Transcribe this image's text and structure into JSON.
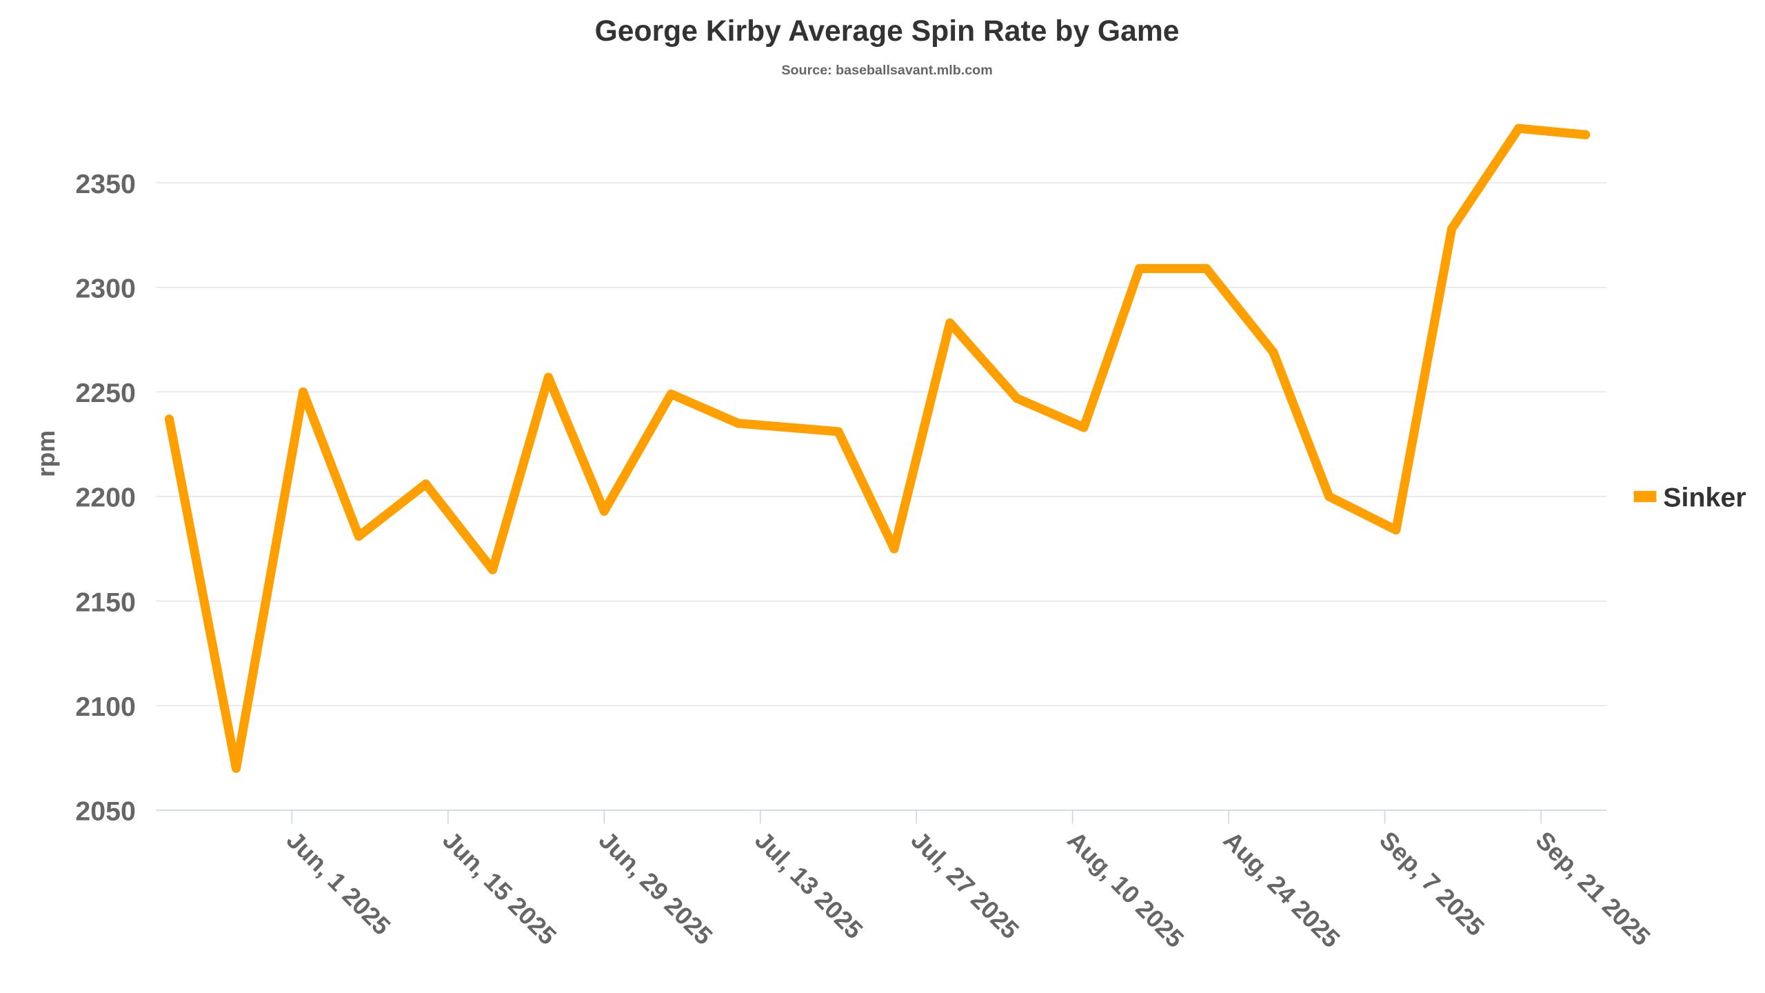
{
  "chart_data": {
    "type": "line",
    "title": "George Kirby Average Spin Rate by Game",
    "subtitle": "Source: baseballsavant.mlb.com",
    "xlabel": "",
    "ylabel": "rpm",
    "ylim": [
      2050,
      2390
    ],
    "yticks": [
      2050,
      2100,
      2150,
      2200,
      2250,
      2300,
      2350
    ],
    "xticks": [
      {
        "label": "Jun, 1 2025",
        "date": "2025-06-01"
      },
      {
        "label": "Jun, 15 2025",
        "date": "2025-06-15"
      },
      {
        "label": "Jun, 29 2025",
        "date": "2025-06-29"
      },
      {
        "label": "Jul, 13 2025",
        "date": "2025-07-13"
      },
      {
        "label": "Jul, 27 2025",
        "date": "2025-07-27"
      },
      {
        "label": "Aug, 10 2025",
        "date": "2025-08-10"
      },
      {
        "label": "Aug, 24 2025",
        "date": "2025-08-24"
      },
      {
        "label": "Sep, 7 2025",
        "date": "2025-09-07"
      },
      {
        "label": "Sep, 21 2025",
        "date": "2025-09-21"
      }
    ],
    "xlim": [
      "2025-05-20",
      "2025-09-27"
    ],
    "grid": true,
    "legend_position": "right",
    "series": [
      {
        "name": "Sinker",
        "color": "#ffa000",
        "x": [
          "2025-05-21",
          "2025-05-27",
          "2025-06-02",
          "2025-06-07",
          "2025-06-13",
          "2025-06-19",
          "2025-06-24",
          "2025-06-29",
          "2025-07-05",
          "2025-07-11",
          "2025-07-20",
          "2025-07-25",
          "2025-07-30",
          "2025-08-05",
          "2025-08-11",
          "2025-08-16",
          "2025-08-22",
          "2025-08-28",
          "2025-09-02",
          "2025-09-08",
          "2025-09-13",
          "2025-09-19",
          "2025-09-25"
        ],
        "values": [
          2237,
          2070,
          2250,
          2181,
          2206,
          2165,
          2257,
          2193,
          2249,
          2235,
          2231,
          2175,
          2283,
          2247,
          2233,
          2309,
          2309,
          2269,
          2200,
          2184,
          2328,
          2376,
          2373
        ]
      }
    ]
  }
}
